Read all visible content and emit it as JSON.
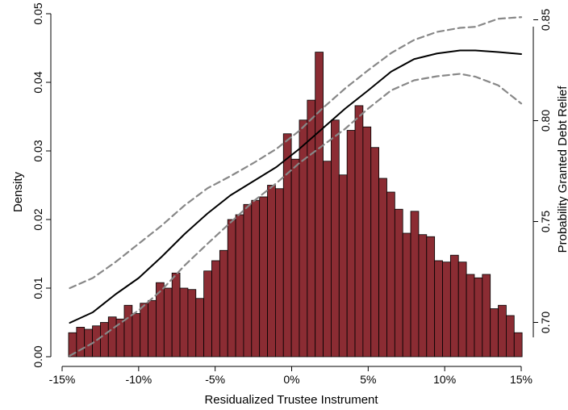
{
  "chart_data": {
    "type": "bar",
    "xlabel": "Residualized Trustee Instrument",
    "ylabel_left": "Density",
    "ylabel_right": "Probability Granted Debt Relief",
    "xlim": [
      -15,
      15
    ],
    "x_ticks": [
      -15,
      -10,
      -5,
      0,
      5,
      10,
      15
    ],
    "x_tick_labels": [
      "-15%",
      "-10%",
      "-5%",
      "0%",
      "5%",
      "10%",
      "15%"
    ],
    "ylim_left": [
      0,
      0.05
    ],
    "y_ticks_left": [
      "0.00",
      "0.01",
      "0.02",
      "0.03",
      "0.04",
      "0.05"
    ],
    "ylim_right": [
      0.683,
      0.853
    ],
    "y_ticks_right": [
      "0.70",
      "0.75",
      "0.80",
      "0.85"
    ],
    "grid": false,
    "histogram": {
      "bin_width": 0.52,
      "bar_color": "#8b2c33",
      "x_start": [
        -14.58,
        -14.06,
        -13.54,
        -13.02,
        -12.5,
        -11.98,
        -11.46,
        -10.94,
        -10.42,
        -9.9,
        -9.38,
        -8.86,
        -8.34,
        -7.82,
        -7.3,
        -6.78,
        -6.26,
        -5.74,
        -5.22,
        -4.7,
        -4.18,
        -3.66,
        -3.14,
        -2.62,
        -2.1,
        -1.58,
        -1.06,
        -0.54,
        -0.02,
        0.5,
        1.02,
        1.54,
        2.06,
        2.58,
        3.1,
        3.62,
        4.14,
        4.66,
        5.18,
        5.7,
        6.22,
        6.74,
        7.26,
        7.78,
        8.3,
        8.82,
        9.34,
        9.86,
        10.38,
        10.9,
        11.42,
        11.94,
        12.46,
        12.98,
        13.5,
        14.02,
        14.54
      ],
      "density": [
        0.0035,
        0.0043,
        0.004,
        0.0045,
        0.005,
        0.0058,
        0.0055,
        0.0075,
        0.0063,
        0.0078,
        0.0082,
        0.0108,
        0.01,
        0.0122,
        0.01,
        0.0098,
        0.0085,
        0.0125,
        0.014,
        0.0155,
        0.02,
        0.0207,
        0.0222,
        0.0228,
        0.0233,
        0.025,
        0.0245,
        0.0325,
        0.0288,
        0.0345,
        0.0374,
        0.0444,
        0.0285,
        0.0345,
        0.0265,
        0.033,
        0.0366,
        0.0335,
        0.0305,
        0.026,
        0.024,
        0.0215,
        0.018,
        0.0212,
        0.0178,
        0.0175,
        0.014,
        0.0138,
        0.0148,
        0.0138,
        0.012,
        0.0115,
        0.012,
        0.007,
        0.0075,
        0.006,
        0.0035
      ]
    },
    "series": [
      {
        "line_style": "solid",
        "color": "#000000",
        "x": [
          -14.5,
          -13,
          -11.5,
          -10,
          -8.5,
          -7,
          -5.5,
          -4,
          -2.5,
          -1,
          0.5,
          2,
          3.5,
          5,
          6.5,
          8,
          9.5,
          11,
          12,
          13.5,
          15
        ],
        "y": [
          0.6998,
          0.705,
          0.714,
          0.722,
          0.7325,
          0.7438,
          0.754,
          0.763,
          0.77,
          0.777,
          0.786,
          0.796,
          0.806,
          0.815,
          0.8243,
          0.8305,
          0.8333,
          0.8348,
          0.8348,
          0.834,
          0.833
        ]
      },
      {
        "line_style": "dashed",
        "color": "#888888",
        "x": [
          -14.5,
          -13,
          -11.5,
          -10,
          -8.5,
          -7,
          -5.5,
          -4,
          -2.5,
          -1,
          0.5,
          2,
          3.5,
          5,
          6.5,
          8,
          9.5,
          11,
          12,
          13.5,
          15
        ],
        "y": [
          0.717,
          0.722,
          0.73,
          0.739,
          0.748,
          0.758,
          0.7665,
          0.7725,
          0.779,
          0.786,
          0.795,
          0.806,
          0.816,
          0.825,
          0.8335,
          0.84,
          0.844,
          0.846,
          0.8465,
          0.8505,
          0.8513
        ]
      },
      {
        "line_style": "dashed",
        "color": "#888888",
        "x": [
          -14.5,
          -13,
          -11.5,
          -10,
          -8.5,
          -7,
          -5.5,
          -4,
          -2.5,
          -1,
          0.5,
          2,
          3.5,
          5,
          6.5,
          8,
          9.5,
          11,
          12,
          13.5,
          15
        ],
        "y": [
          0.6835,
          0.6898,
          0.698,
          0.706,
          0.716,
          0.7282,
          0.739,
          0.7495,
          0.76,
          0.769,
          0.779,
          0.7875,
          0.796,
          0.806,
          0.815,
          0.82,
          0.822,
          0.8232,
          0.8218,
          0.8175,
          0.8085
        ]
      }
    ]
  }
}
